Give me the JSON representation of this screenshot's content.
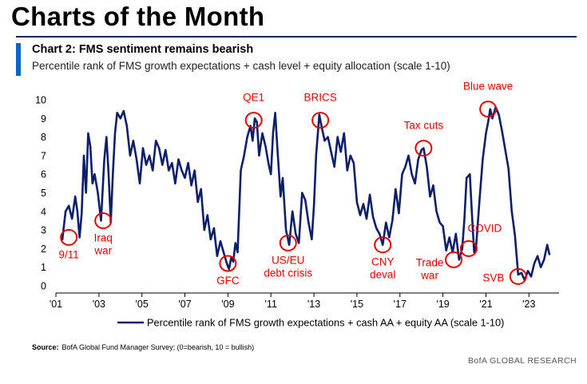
{
  "page": {
    "title": "Charts of the Month",
    "chart_title": "Chart 2: FMS sentiment remains bearish",
    "chart_subtitle": "Percentile rank of FMS growth expectations + cash level + equity allocation (scale 1-10)",
    "source_label": "Source:",
    "source_text": "BofA Global Fund Manager Survey; (0=bearish, 10 = bullish)",
    "credit": "BofA GLOBAL RESEARCH"
  },
  "colors": {
    "line": "#0d1f6b",
    "annotation": "#e00000",
    "title_rule": "#012169",
    "accent_bar": "#0b64c8"
  },
  "chart_data": {
    "type": "line",
    "xlim": [
      2001.0,
      2024.4
    ],
    "ylim": [
      0,
      10
    ],
    "x_ticks": [
      2001,
      2003,
      2005,
      2007,
      2009,
      2011,
      2013,
      2015,
      2017,
      2019,
      2021,
      2023
    ],
    "x_tick_labels": [
      "'01",
      "'03",
      "'05",
      "'07",
      "'09",
      "'11",
      "'13",
      "'15",
      "'17",
      "'19",
      "'21",
      "'23"
    ],
    "y_ticks": [
      0,
      1,
      2,
      3,
      4,
      5,
      6,
      7,
      8,
      9,
      10
    ],
    "grid": false,
    "legend_position": "bottom",
    "series": [
      {
        "name": "Percentile rank of FMS growth expectations + cash AA + equity AA (scale 1-10)",
        "x": [
          2001.3,
          2001.45,
          2001.6,
          2001.75,
          2001.9,
          2002.0,
          2002.1,
          2002.2,
          2002.3,
          2002.4,
          2002.5,
          2002.6,
          2002.7,
          2002.8,
          2002.95,
          2003.1,
          2003.25,
          2003.35,
          2003.45,
          2003.55,
          2003.65,
          2003.75,
          2003.85,
          2004.0,
          2004.15,
          2004.3,
          2004.45,
          2004.6,
          2004.75,
          2004.9,
          2005.05,
          2005.2,
          2005.35,
          2005.5,
          2005.65,
          2005.8,
          2005.95,
          2006.1,
          2006.25,
          2006.4,
          2006.55,
          2006.7,
          2006.85,
          2007.0,
          2007.15,
          2007.3,
          2007.45,
          2007.6,
          2007.75,
          2007.9,
          2008.05,
          2008.2,
          2008.35,
          2008.5,
          2008.65,
          2008.8,
          2008.95,
          2009.05,
          2009.15,
          2009.25,
          2009.35,
          2009.45,
          2009.6,
          2009.75,
          2009.9,
          2010.05,
          2010.15,
          2010.25,
          2010.35,
          2010.45,
          2010.6,
          2010.75,
          2010.9,
          2011.0,
          2011.1,
          2011.2,
          2011.3,
          2011.45,
          2011.55,
          2011.7,
          2011.85,
          2012.0,
          2012.15,
          2012.3,
          2012.45,
          2012.6,
          2012.75,
          2012.9,
          2013.0,
          2013.1,
          2013.25,
          2013.35,
          2013.5,
          2013.65,
          2013.8,
          2013.95,
          2014.1,
          2014.25,
          2014.4,
          2014.55,
          2014.7,
          2014.85,
          2015.0,
          2015.15,
          2015.3,
          2015.45,
          2015.6,
          2015.75,
          2015.9,
          2016.05,
          2016.2,
          2016.35,
          2016.5,
          2016.65,
          2016.8,
          2016.95,
          2017.1,
          2017.25,
          2017.4,
          2017.55,
          2017.7,
          2017.85,
          2018.0,
          2018.1,
          2018.25,
          2018.4,
          2018.55,
          2018.7,
          2018.85,
          2019.0,
          2019.15,
          2019.3,
          2019.45,
          2019.6,
          2019.75,
          2019.9,
          2020.0,
          2020.1,
          2020.25,
          2020.35,
          2020.45,
          2020.55,
          2020.7,
          2020.85,
          2021.0,
          2021.1,
          2021.2,
          2021.3,
          2021.45,
          2021.6,
          2021.75,
          2021.9,
          2022.05,
          2022.2,
          2022.35,
          2022.5,
          2022.65,
          2022.8,
          2022.95,
          2023.1,
          2023.25,
          2023.4,
          2023.55,
          2023.7,
          2023.85,
          2023.95
        ],
        "y": [
          2.5,
          4.0,
          4.3,
          3.6,
          4.8,
          4.0,
          2.6,
          3.9,
          7.0,
          5.0,
          8.2,
          7.5,
          5.5,
          6.0,
          5.0,
          3.5,
          6.8,
          8.0,
          6.0,
          3.4,
          6.0,
          8.2,
          9.3,
          9.0,
          9.4,
          8.6,
          7.0,
          7.8,
          6.8,
          5.5,
          7.4,
          6.5,
          7.0,
          6.2,
          7.8,
          7.4,
          6.5,
          7.3,
          6.2,
          6.6,
          5.5,
          6.8,
          6.2,
          5.8,
          6.6,
          5.4,
          6.2,
          4.5,
          5.2,
          3.0,
          3.8,
          2.5,
          3.1,
          1.6,
          2.4,
          1.8,
          1.2,
          0.9,
          1.5,
          1.3,
          2.3,
          1.8,
          6.2,
          7.0,
          8.0,
          8.6,
          7.8,
          9.0,
          8.8,
          7.0,
          8.2,
          7.5,
          6.5,
          6.0,
          8.2,
          9.3,
          7.4,
          4.8,
          5.8,
          3.0,
          2.2,
          4.0,
          2.8,
          2.3,
          5.0,
          4.6,
          3.4,
          2.5,
          4.3,
          7.0,
          9.2,
          8.6,
          7.8,
          8.0,
          7.2,
          6.4,
          8.0,
          7.2,
          8.2,
          6.2,
          7.0,
          6.6,
          4.5,
          3.8,
          4.4,
          3.6,
          4.9,
          3.7,
          3.1,
          2.8,
          2.2,
          3.4,
          2.6,
          3.5,
          5.2,
          3.9,
          6.0,
          6.4,
          7.0,
          6.0,
          5.5,
          6.8,
          7.3,
          7.4,
          6.4,
          4.8,
          5.4,
          4.0,
          3.4,
          3.2,
          1.9,
          2.6,
          1.8,
          2.8,
          1.4,
          2.0,
          3.6,
          5.8,
          6.0,
          3.8,
          1.8,
          2.2,
          4.6,
          6.8,
          8.2,
          8.8,
          9.5,
          9.0,
          9.6,
          9.2,
          8.3,
          7.3,
          6.3,
          4.0,
          2.7,
          0.6,
          0.7,
          0.3,
          0.8,
          0.5,
          1.2,
          1.6,
          1.0,
          1.4,
          2.2,
          1.7
        ]
      }
    ],
    "annotations": [
      {
        "label": "9/11",
        "x": 2001.6,
        "y": 2.6,
        "label_pos": "below"
      },
      {
        "label": "Iraq\nwar",
        "x": 2003.2,
        "y": 3.5,
        "label_pos": "below"
      },
      {
        "label": "GFC",
        "x": 2009.0,
        "y": 1.2,
        "label_pos": "below"
      },
      {
        "label": "QE1",
        "x": 2010.2,
        "y": 8.9,
        "label_pos": "above"
      },
      {
        "label": "US/EU\ndebt crisis",
        "x": 2011.8,
        "y": 2.3,
        "label_pos": "below"
      },
      {
        "label": "BRICS",
        "x": 2013.3,
        "y": 8.9,
        "label_pos": "above"
      },
      {
        "label": "CNY\ndeval",
        "x": 2016.2,
        "y": 2.2,
        "label_pos": "below"
      },
      {
        "label": "Tax cuts",
        "x": 2018.1,
        "y": 7.4,
        "label_pos": "above"
      },
      {
        "label": "Trade\nwar",
        "x": 2019.5,
        "y": 1.4,
        "label_pos": "below-left"
      },
      {
        "label": "COVID",
        "x": 2020.2,
        "y": 2.0,
        "label_pos": "right"
      },
      {
        "label": "Blue wave",
        "x": 2021.1,
        "y": 9.5,
        "label_pos": "above"
      },
      {
        "label": "SVB",
        "x": 2022.5,
        "y": 0.5,
        "label_pos": "left"
      }
    ]
  }
}
